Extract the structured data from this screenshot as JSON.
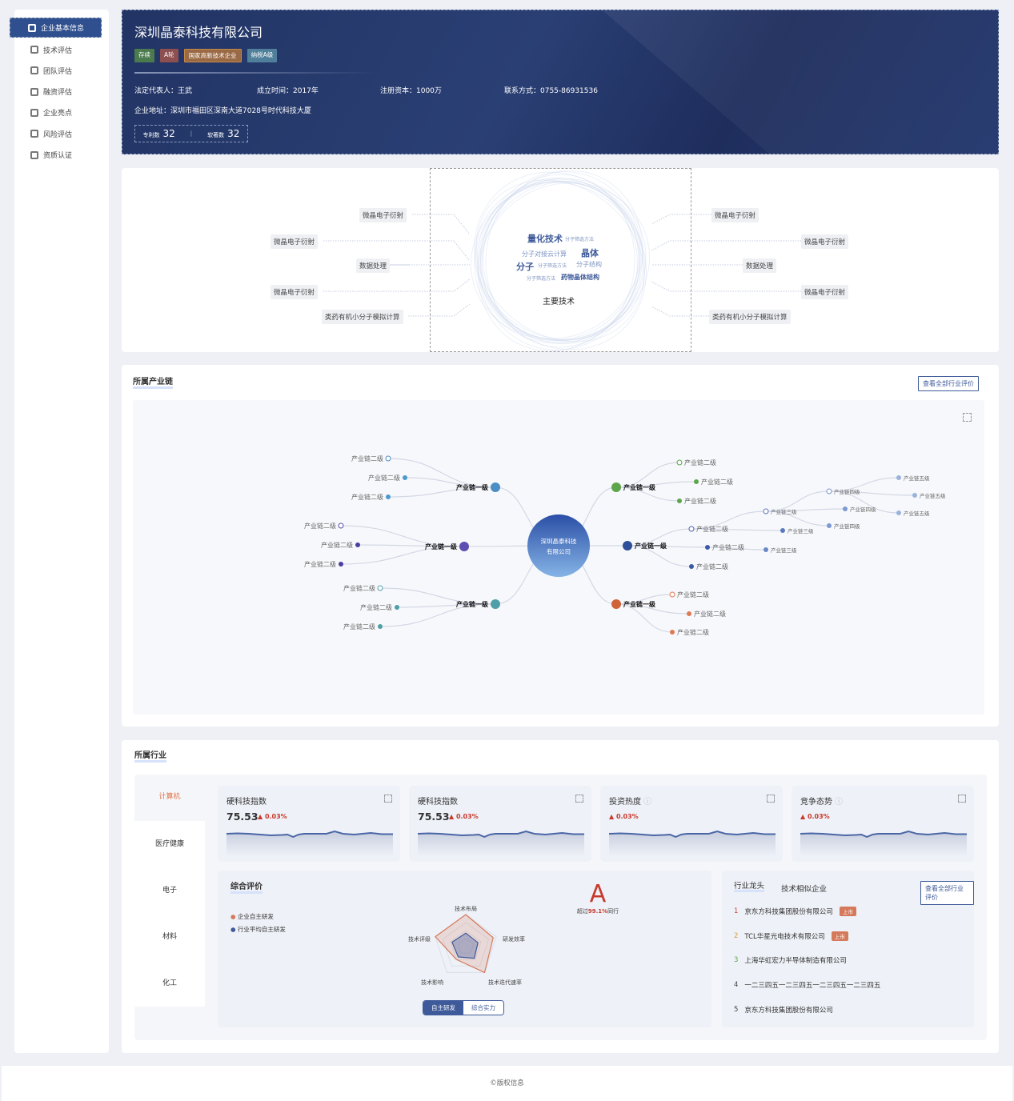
{
  "sidebar": {
    "items": [
      {
        "label": "企业基本信息",
        "icon": "building-icon",
        "active": true
      },
      {
        "label": "技术评估",
        "icon": "tech-icon"
      },
      {
        "label": "团队评估",
        "icon": "team-icon"
      },
      {
        "label": "融资评估",
        "icon": "money-bag-icon"
      },
      {
        "label": "企业亮点",
        "icon": "medal-icon"
      },
      {
        "label": "风险评估",
        "icon": "risk-icon"
      },
      {
        "label": "资质认证",
        "icon": "certificate-icon"
      }
    ]
  },
  "company": {
    "name": "深圳晶泰科技有限公司",
    "tags": [
      {
        "label": "存续",
        "color": "#4a7a4e"
      },
      {
        "label": "A轮",
        "color": "#8d4f4f"
      },
      {
        "label": "国家高新技术企业",
        "color": "#9a6a45"
      },
      {
        "label": "纳税A级",
        "color": "#4f7f9a"
      }
    ],
    "legal_rep": "法定代表人：王武",
    "founded": "成立时间：2017年",
    "capital": "注册资本：1000万",
    "contact": "联系方式：0755-86931536",
    "address": "企业地址：深圳市福田区深南大道7028号时代科技大厦",
    "patents_label": "专利数",
    "patents": "32",
    "software_label": "软著数",
    "software": "32"
  },
  "tech": {
    "center_title": "主要技术",
    "cloud": [
      {
        "t": "量化技术",
        "big": true
      },
      {
        "t": "分子筛选方法"
      },
      {
        "t": "分子对接云计算"
      },
      {
        "t": "晶体",
        "big": true
      },
      {
        "t": "分子",
        "big": true
      },
      {
        "t": "分子筛选方法"
      },
      {
        "t": "分子结构"
      },
      {
        "t": "分子筛选方法"
      },
      {
        "t": "药物晶体结构",
        "mid": true
      }
    ],
    "left": [
      "微晶电子衍射",
      "微晶电子衍射",
      "数据处理",
      "微晶电子衍射",
      "类药有机小分子模拟计算"
    ],
    "right": [
      "微晶电子衍射",
      "微晶电子衍射",
      "数据处理",
      "微晶电子衍射",
      "类药有机小分子模拟计算"
    ]
  },
  "chain": {
    "title": "所属产业链",
    "view_all": "查看全部行业评价",
    "center": [
      "深圳晶泰科技",
      "有限公司"
    ],
    "nodes": [
      {
        "label": "产业链一级",
        "color": "#4a8ec4"
      },
      {
        "label": "产业链二级",
        "color": "#4a8ec4",
        "hollow": true
      },
      {
        "label": "产业链二级",
        "color": "#4a9ad0"
      },
      {
        "label": "产业链二级",
        "color": "#4a9ad0"
      },
      {
        "label": "产业链一级",
        "color": "#5b4fb0"
      },
      {
        "label": "产业链二级",
        "color": "#5b4fb0",
        "hollow": true
      },
      {
        "label": "产业链二级",
        "color": "#4a3fa0"
      },
      {
        "label": "产业链二级",
        "color": "#4a3fa0"
      },
      {
        "label": "产业链一级",
        "color": "#4f9fa8"
      },
      {
        "label": "产业链二级",
        "color": "#4f9fa8",
        "hollow": true
      },
      {
        "label": "产业链二级",
        "color": "#4f9fa8"
      },
      {
        "label": "产业链二级",
        "color": "#4f9fa8"
      },
      {
        "label": "产业链一级",
        "color": "#5da54b"
      },
      {
        "label": "产业链二级",
        "color": "#5da54b",
        "hollow": true
      },
      {
        "label": "产业链二级",
        "color": "#5da54b"
      },
      {
        "label": "产业链二级",
        "color": "#5da54b"
      },
      {
        "label": "产业链一级",
        "color": "#2f4f9a"
      },
      {
        "label": "产业链二级",
        "color": "#4a5fb0",
        "hollow": true
      },
      {
        "label": "产业链二级",
        "color": "#3a5aa8"
      },
      {
        "label": "产业链二级",
        "color": "#3a5aa8"
      },
      {
        "label": "产业链三级",
        "color": "#5a72c0",
        "hollow": true
      },
      {
        "label": "产业链三级",
        "color": "#5a7ac0"
      },
      {
        "label": "产业链三级",
        "color": "#6a88c8"
      },
      {
        "label": "产业链四级",
        "color": "#7a92cc",
        "hollow": true
      },
      {
        "label": "产业链四级",
        "color": "#7a9ad0"
      },
      {
        "label": "产业链四级",
        "color": "#7a9ad0"
      },
      {
        "label": "产业链五级",
        "color": "#9ab2de"
      },
      {
        "label": "产业链五级",
        "color": "#9ab2de"
      },
      {
        "label": "产业链五级",
        "color": "#9ab2de"
      },
      {
        "label": "产业链一级",
        "color": "#d0623a"
      },
      {
        "label": "产业链二级",
        "color": "#e07a50",
        "hollow": true
      },
      {
        "label": "产业链二级",
        "color": "#e07a50"
      },
      {
        "label": "产业链二级",
        "color": "#e07a50"
      }
    ]
  },
  "industry": {
    "title": "所属行业",
    "tabs": [
      {
        "label": "计算机",
        "active": true
      },
      {
        "label": "医疗健康"
      },
      {
        "label": "电子"
      },
      {
        "label": "材料"
      },
      {
        "label": "化工"
      }
    ],
    "metrics": [
      {
        "title": "硬科技指数",
        "value": "75.53",
        "change": "0.03%"
      },
      {
        "title": "硬科技指数",
        "value": "75.53",
        "change": "0.03%"
      },
      {
        "title": "投资热度",
        "value": "",
        "change": "0.03%",
        "info": true
      },
      {
        "title": "竞争态势",
        "value": "",
        "change": "0.03%",
        "info": true
      }
    ],
    "eval": {
      "title": "综合评价",
      "legend": [
        {
          "label": "企业自主研发",
          "color": "#d47a5b"
        },
        {
          "label": "行业平均自主研发",
          "color": "#3e5a9a"
        }
      ],
      "grade": "A",
      "beat_prefix": "超过",
      "beat_value": "99.1%",
      "beat_suffix": "同行",
      "axes": [
        "技术布局",
        "研发效率",
        "技术迭代速率",
        "技术影响",
        "技术评级"
      ],
      "series": [
        {
          "name": "企业自主研发",
          "values": [
            100,
            90,
            100,
            50,
            100
          ]
        },
        {
          "name": "行业平均自主研发",
          "values": [
            42,
            40,
            45,
            40,
            45
          ]
        }
      ],
      "toggle": [
        "自主研发",
        "综合实力"
      ]
    },
    "leaders": {
      "tabs": [
        "行业龙头",
        "技术相似企业"
      ],
      "view_all": "查看全部行业评价",
      "items": [
        {
          "rank": "1",
          "name": "京东方科技集团股份有限公司",
          "badge": "上市",
          "color": "#d0463a"
        },
        {
          "rank": "2",
          "name": "TCL华星光电技术有限公司",
          "badge": "上市",
          "color": "#d4a23a"
        },
        {
          "rank": "3",
          "name": "上海华虹宏力半导体制造有限公司",
          "color": "#5da54b"
        },
        {
          "rank": "4",
          "name": "一二三四五一二三四五一二三四五一二三四五",
          "color": "#444"
        },
        {
          "rank": "5",
          "name": "京东方科技集团股份有限公司",
          "color": "#444"
        }
      ]
    }
  },
  "footer": "©版权信息"
}
